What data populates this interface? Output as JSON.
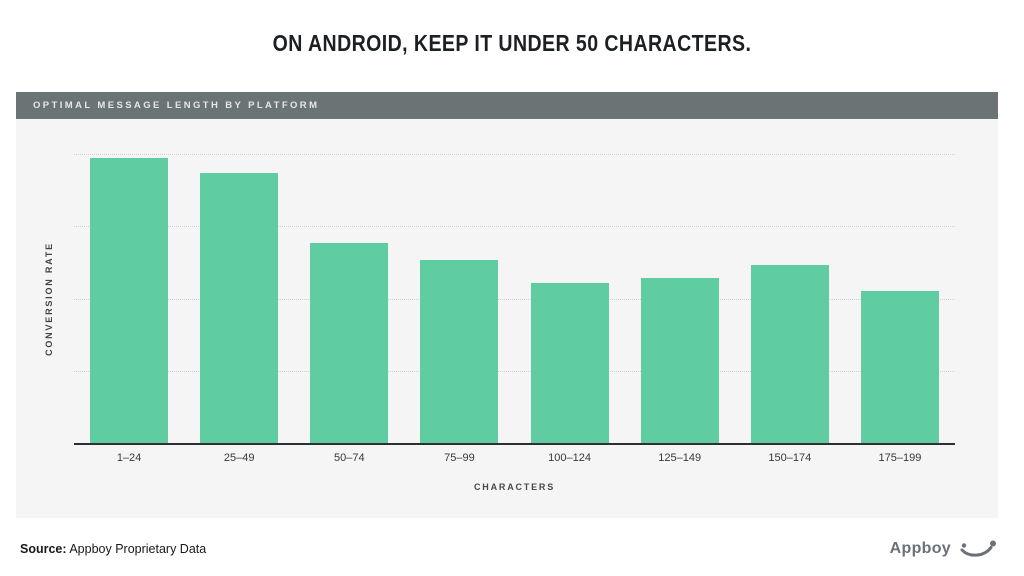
{
  "page": {
    "title": "ON ANDROID, KEEP IT UNDER 50 CHARACTERS."
  },
  "panel": {
    "header": "OPTIMAL MESSAGE LENGTH BY PLATFORM"
  },
  "chart_data": {
    "type": "bar",
    "title": "OPTIMAL MESSAGE LENGTH BY PLATFORM",
    "categories": [
      "1–24",
      "25–49",
      "50–74",
      "75–99",
      "100–124",
      "125–149",
      "150–174",
      "175–199"
    ],
    "values": [
      3.94,
      3.74,
      2.77,
      2.54,
      2.22,
      2.29,
      2.46,
      2.11
    ],
    "xlabel": "CHARACTERS",
    "ylabel": "CONVERSION RATE",
    "ylim": [
      0,
      4
    ],
    "y_tick_labels": [],
    "grid": "horizontal-dotted",
    "legend": "none",
    "bar_color": "#5fcda1"
  },
  "footer": {
    "source_label": "Source:",
    "source_text": " Appboy Proprietary Data",
    "brand": "Appboy",
    "brand_icon": "smiley-wink-icon"
  },
  "colors": {
    "bar_green": "#5fcda1",
    "header_bar": "#6b7474",
    "panel_background": "#f5f5f6",
    "page_background": "#ffffff",
    "grid_dotted": "#d2d2d2",
    "axis_line": "#2e2f30",
    "brand_gray": "#6b7177"
  }
}
